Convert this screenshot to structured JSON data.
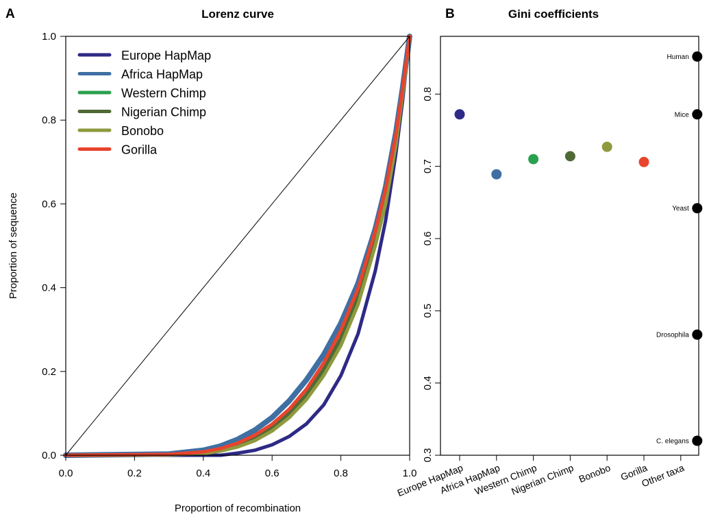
{
  "chart_data": [
    {
      "panel_label": "A",
      "type": "line",
      "title": "Lorenz curve",
      "xlabel": "Proportion of recombination",
      "ylabel": "Proportion of sequence",
      "xlim": [
        0.0,
        1.0
      ],
      "ylim": [
        0.0,
        1.0
      ],
      "xticks": [
        "0.0",
        "0.2",
        "0.4",
        "0.6",
        "0.8",
        "1.0"
      ],
      "yticks": [
        "0.0",
        "0.2",
        "0.4",
        "0.6",
        "0.8",
        "1.0"
      ],
      "grid": false,
      "legend_position": "top-left",
      "equality_line": {
        "x": [
          0.0,
          1.0
        ],
        "y": [
          0.0,
          1.0
        ],
        "color": "#000000"
      },
      "x": [
        0.0,
        0.3,
        0.4,
        0.45,
        0.5,
        0.55,
        0.6,
        0.65,
        0.7,
        0.75,
        0.8,
        0.85,
        0.9,
        0.93,
        0.96,
        0.98,
        1.0
      ],
      "series": [
        {
          "name": "Europe HapMap",
          "color": "#2e2a86",
          "values": [
            0.0,
            0.0,
            0.0,
            0.0,
            0.005,
            0.012,
            0.025,
            0.045,
            0.075,
            0.12,
            0.19,
            0.29,
            0.44,
            0.56,
            0.72,
            0.85,
            1.0
          ]
        },
        {
          "name": "Africa HapMap",
          "color": "#3f6fa3",
          "values": [
            0.0,
            0.003,
            0.012,
            0.022,
            0.038,
            0.06,
            0.09,
            0.13,
            0.18,
            0.24,
            0.315,
            0.41,
            0.54,
            0.64,
            0.77,
            0.88,
            1.0
          ]
        },
        {
          "name": "Western Chimp",
          "color": "#2aa14e",
          "values": [
            0.0,
            0.001,
            0.005,
            0.012,
            0.023,
            0.039,
            0.062,
            0.095,
            0.14,
            0.198,
            0.27,
            0.37,
            0.51,
            0.61,
            0.75,
            0.87,
            1.0
          ]
        },
        {
          "name": "Nigerian Chimp",
          "color": "#4f6a35",
          "values": [
            0.0,
            0.001,
            0.006,
            0.013,
            0.025,
            0.042,
            0.066,
            0.1,
            0.145,
            0.205,
            0.28,
            0.38,
            0.52,
            0.62,
            0.755,
            0.873,
            1.0
          ]
        },
        {
          "name": "Bonobo",
          "color": "#8e9a3d",
          "values": [
            0.0,
            0.001,
            0.004,
            0.01,
            0.02,
            0.035,
            0.058,
            0.09,
            0.133,
            0.19,
            0.262,
            0.36,
            0.5,
            0.6,
            0.74,
            0.865,
            1.0
          ]
        },
        {
          "name": "Gorilla",
          "color": "#e8442e",
          "values": [
            0.0,
            0.002,
            0.008,
            0.016,
            0.029,
            0.048,
            0.074,
            0.11,
            0.158,
            0.22,
            0.298,
            0.398,
            0.535,
            0.635,
            0.765,
            0.878,
            1.0
          ]
        }
      ]
    },
    {
      "panel_label": "B",
      "type": "scatter",
      "title": "Gini coefficients",
      "ylim": [
        0.3,
        0.88
      ],
      "yticks": [
        "0.3",
        "0.4",
        "0.5",
        "0.6",
        "0.7",
        "0.8"
      ],
      "grid": false,
      "categories": [
        "Europe HapMap",
        "Africa HapMap",
        "Western Chimp",
        "Nigerian Chimp",
        "Bonobo",
        "Gorilla",
        "Other taxa"
      ],
      "points": [
        {
          "category": "Europe HapMap",
          "value": 0.772,
          "color": "#2e2a86"
        },
        {
          "category": "Africa HapMap",
          "value": 0.689,
          "color": "#3f6fa3"
        },
        {
          "category": "Western Chimp",
          "value": 0.71,
          "color": "#2aa14e"
        },
        {
          "category": "Nigerian Chimp",
          "value": 0.714,
          "color": "#4f6a35"
        },
        {
          "category": "Bonobo",
          "value": 0.727,
          "color": "#8e9a3d"
        },
        {
          "category": "Gorilla",
          "value": 0.706,
          "color": "#e8442e"
        }
      ],
      "other_taxa": [
        {
          "label": "Human",
          "value": 0.852,
          "color": "#000000"
        },
        {
          "label": "Mice",
          "value": 0.772,
          "color": "#000000"
        },
        {
          "label": "Yeast",
          "value": 0.642,
          "color": "#000000"
        },
        {
          "label": "Drosophila",
          "value": 0.467,
          "color": "#000000"
        },
        {
          "label": "C. elegans",
          "value": 0.32,
          "color": "#000000"
        }
      ]
    }
  ]
}
